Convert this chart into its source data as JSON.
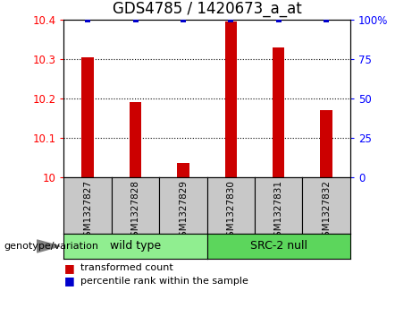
{
  "title": "GDS4785 / 1420673_a_at",
  "samples": [
    "GSM1327827",
    "GSM1327828",
    "GSM1327829",
    "GSM1327830",
    "GSM1327831",
    "GSM1327832"
  ],
  "red_bar_values": [
    10.305,
    10.19,
    10.035,
    10.395,
    10.33,
    10.17
  ],
  "blue_marker_values": [
    100,
    100,
    100,
    100,
    100,
    100
  ],
  "ylim_left": [
    10.0,
    10.4
  ],
  "ylim_right": [
    0,
    100
  ],
  "yticks_left": [
    10.0,
    10.1,
    10.2,
    10.3,
    10.4
  ],
  "ytick_labels_left": [
    "10",
    "10.1",
    "10.2",
    "10.3",
    "10.4"
  ],
  "yticks_right": [
    0,
    25,
    50,
    75,
    100
  ],
  "ytick_labels_right": [
    "0",
    "25",
    "50",
    "75",
    "100%"
  ],
  "grid_yticks": [
    10.1,
    10.2,
    10.3
  ],
  "groups": [
    {
      "label": "wild type",
      "indices": [
        0,
        1,
        2
      ],
      "color": "#90EE90"
    },
    {
      "label": "SRC-2 null",
      "indices": [
        3,
        4,
        5
      ],
      "color": "#5CD65C"
    }
  ],
  "group_label_prefix": "genotype/variation",
  "legend_red_label": "transformed count",
  "legend_blue_label": "percentile rank within the sample",
  "bar_color": "#CC0000",
  "blue_color": "#0000CC",
  "box_bg_color": "#C8C8C8",
  "title_fontsize": 12,
  "bar_width": 0.25
}
